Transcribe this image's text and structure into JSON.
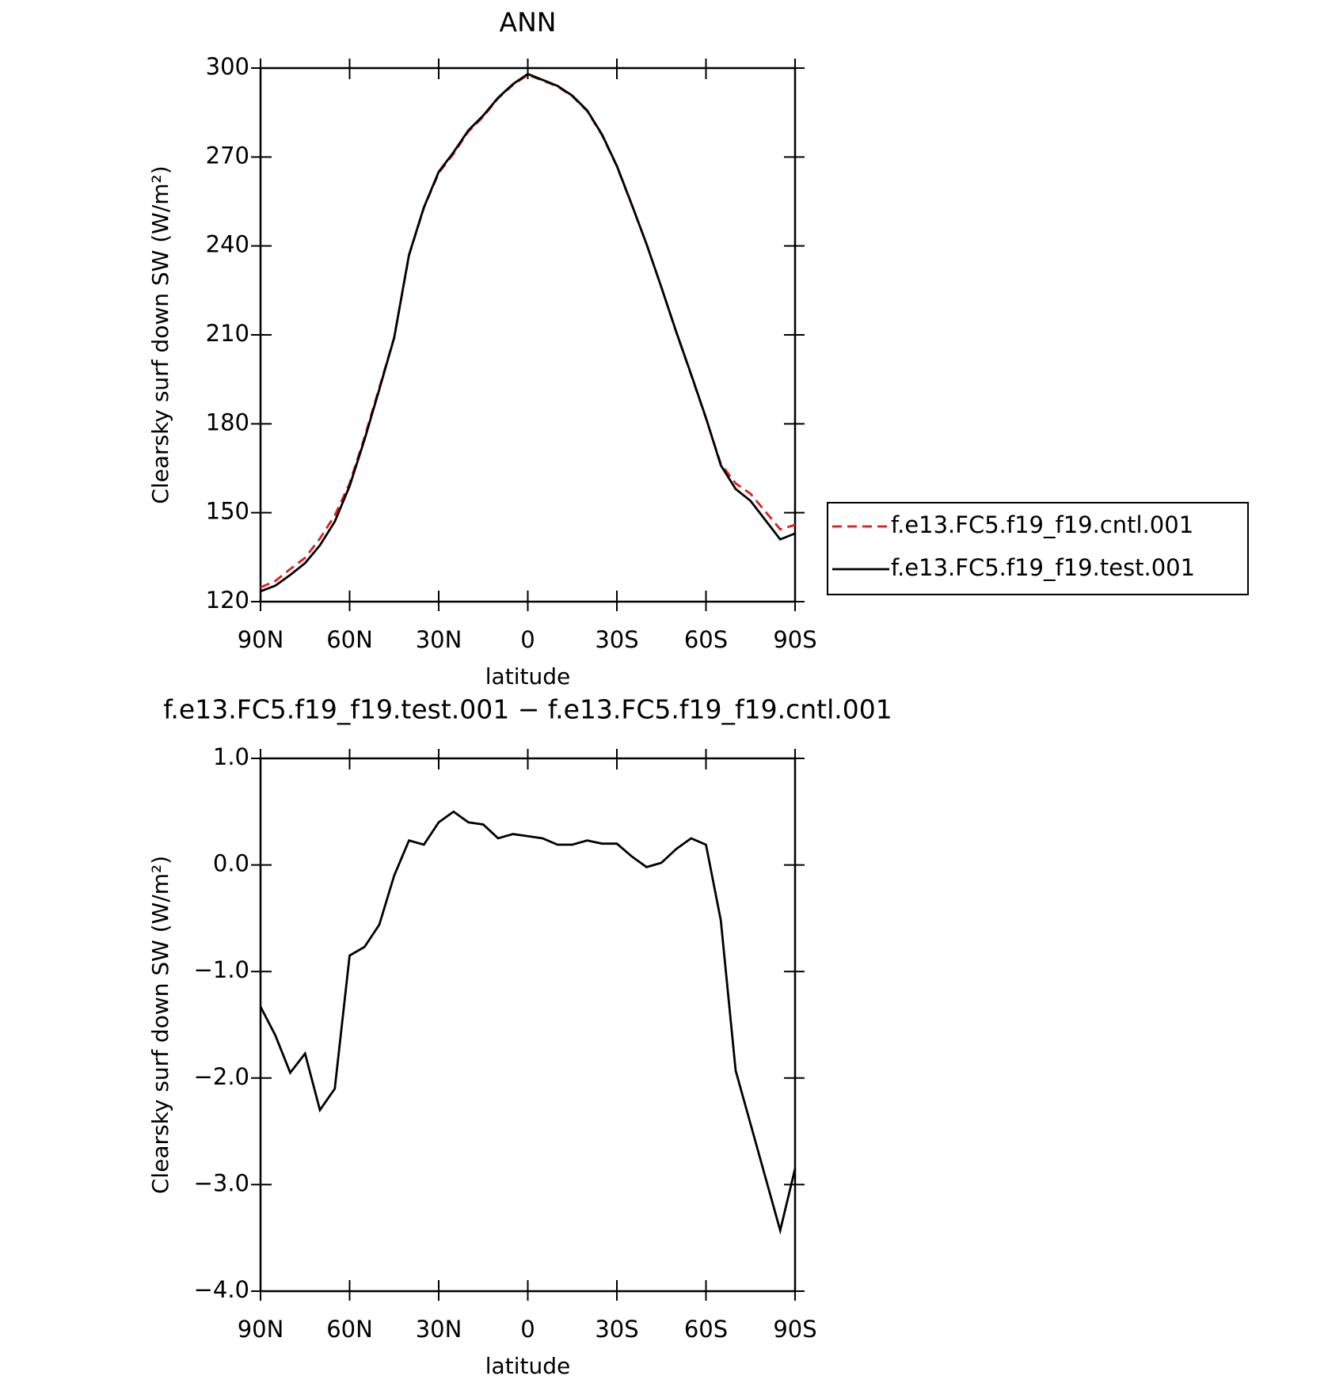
{
  "chart_data": [
    {
      "type": "line",
      "title": "ANN",
      "xlabel": "latitude",
      "ylabel": "Clearsky surf down SW (W/m²)",
      "x": [
        90,
        85,
        80,
        75,
        70,
        65,
        60,
        55,
        50,
        45,
        40,
        35,
        30,
        25,
        20,
        15,
        10,
        5,
        0,
        -5,
        -10,
        -15,
        -20,
        -25,
        -30,
        -35,
        -40,
        -45,
        -50,
        -55,
        -60,
        -65,
        -70,
        -75,
        -80,
        -85,
        -90
      ],
      "xlim": [
        90,
        -90
      ],
      "xticks": [
        {
          "value": 90,
          "label": "90N"
        },
        {
          "value": 60,
          "label": "60N"
        },
        {
          "value": 30,
          "label": "30N"
        },
        0,
        {
          "value": -30,
          "label": "30S"
        },
        {
          "value": -60,
          "label": "60S"
        },
        {
          "value": -90,
          "label": "90S"
        }
      ],
      "ylim": [
        120,
        300
      ],
      "yticks": [
        120,
        150,
        180,
        210,
        240,
        270,
        300
      ],
      "series": [
        {
          "name": "f.e13.FC5.f19_f19.cntl.001",
          "color": "#e41a1c",
          "dash": true,
          "values": [
            124.8,
            127.0,
            131.0,
            134.8,
            141.3,
            149.1,
            159.9,
            175.4,
            192.2,
            209.1,
            236.8,
            252.8,
            264.6,
            271.1,
            278.6,
            283.6,
            289.8,
            294.3,
            297.7,
            295.8,
            293.8,
            290.5,
            285.5,
            277.4,
            266.8,
            253.9,
            240.6,
            226.0,
            210.9,
            196.5,
            181.8,
            166.5,
            159.9,
            156.4,
            150.4,
            144.4,
            145.9
          ]
        },
        {
          "name": "f.e13.FC5.f19_f19.test.001",
          "color": "#000000",
          "dash": false,
          "values": [
            123.5,
            125.4,
            129,
            133,
            139,
            147,
            159,
            174.6,
            191.6,
            209,
            237,
            253,
            265,
            271.6,
            279,
            284,
            290,
            294.6,
            298,
            296,
            294,
            290.7,
            285.7,
            277.6,
            267,
            254,
            240.6,
            226,
            211,
            196.7,
            182,
            166,
            158,
            154,
            147.5,
            141,
            143
          ]
        }
      ],
      "legend": "outside-right"
    },
    {
      "type": "line",
      "title": "f.e13.FC5.f19_f19.test.001 − f.e13.FC5.f19_f19.cntl.001",
      "xlabel": "latitude",
      "ylabel": "Clearsky surf down SW (W/m²)",
      "x": [
        90,
        85,
        80,
        75,
        70,
        65,
        60,
        55,
        50,
        45,
        40,
        35,
        30,
        25,
        20,
        15,
        10,
        5,
        0,
        -5,
        -10,
        -15,
        -20,
        -25,
        -30,
        -35,
        -40,
        -45,
        -50,
        -55,
        -60,
        -65,
        -70,
        -75,
        -80,
        -85,
        -90
      ],
      "xlim": [
        90,
        -90
      ],
      "xticks": [
        {
          "value": 90,
          "label": "90N"
        },
        {
          "value": 60,
          "label": "60N"
        },
        {
          "value": 30,
          "label": "30N"
        },
        0,
        {
          "value": -30,
          "label": "30S"
        },
        {
          "value": -60,
          "label": "60S"
        },
        {
          "value": -90,
          "label": "90S"
        }
      ],
      "ylim": [
        -4,
        1
      ],
      "yticks": [
        {
          "value": -4,
          "label": "−4.0"
        },
        {
          "value": -3,
          "label": "−3.0"
        },
        {
          "value": -2,
          "label": "−2.0"
        },
        {
          "value": -1,
          "label": "−1.0"
        },
        {
          "value": 0,
          "label": "0.0"
        },
        {
          "value": 1,
          "label": "1.0"
        }
      ],
      "series": [
        {
          "color": "#000000",
          "dash": false,
          "values": [
            -1.33,
            -1.6,
            -1.95,
            -1.77,
            -2.3,
            -2.1,
            -0.85,
            -0.77,
            -0.56,
            -0.1,
            0.23,
            0.19,
            0.4,
            0.5,
            0.4,
            0.38,
            0.25,
            0.29,
            0.27,
            0.25,
            0.19,
            0.19,
            0.23,
            0.2,
            0.2,
            0.08,
            -0.02,
            0.02,
            0.15,
            0.25,
            0.19,
            -0.52,
            -1.93,
            -2.43,
            -2.93,
            -3.43,
            -2.85
          ]
        }
      ]
    }
  ]
}
